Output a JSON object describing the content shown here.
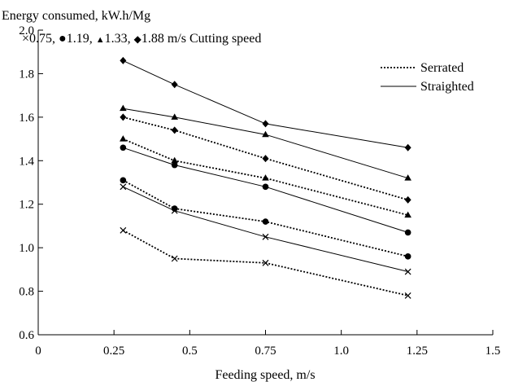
{
  "chart_data": {
    "type": "line",
    "ylabel": "Energy consumed, kW.h/Mg",
    "xlabel": "Feeding speed, m/s",
    "subtitle_parts": [
      "×0.75, ",
      "●",
      "1.19, ",
      "▲",
      "1.33, ",
      "◆",
      "1.88 m/s Cutting speed"
    ],
    "legend": [
      {
        "label": "Serrated",
        "style": "dotted"
      },
      {
        "label": "Straighted",
        "style": "solid"
      }
    ],
    "legend_position": "top-right",
    "xlim": [
      0,
      1.5
    ],
    "ylim": [
      0.6,
      2.0
    ],
    "xticks": [
      0,
      0.25,
      0.5,
      0.75,
      1.0,
      1.25,
      1.5
    ],
    "xtick_labels": [
      "0",
      "0.25",
      "0.5",
      "0.75",
      "1.0",
      "1.25",
      "1.5"
    ],
    "yticks": [
      0.6,
      0.8,
      1.0,
      1.2,
      1.4,
      1.6,
      1.8,
      2.0
    ],
    "ytick_labels": [
      "0.6",
      "0.8",
      "1.0",
      "1.2",
      "1.4",
      "1.6",
      "1.8",
      "2.0"
    ],
    "grid": false,
    "x": [
      0.28,
      0.45,
      0.75,
      1.22
    ],
    "series": [
      {
        "style": "dotted",
        "marker": "x",
        "cutting_speed": 0.75,
        "values": [
          1.08,
          0.95,
          0.93,
          0.78
        ]
      },
      {
        "style": "solid",
        "marker": "x",
        "cutting_speed": 0.75,
        "values": [
          1.28,
          1.17,
          1.05,
          0.89
        ]
      },
      {
        "style": "dotted",
        "marker": "circle",
        "cutting_speed": 1.19,
        "values": [
          1.31,
          1.18,
          1.12,
          0.96
        ]
      },
      {
        "style": "solid",
        "marker": "circle",
        "cutting_speed": 1.19,
        "values": [
          1.46,
          1.38,
          1.28,
          1.07
        ]
      },
      {
        "style": "dotted",
        "marker": "triangle",
        "cutting_speed": 1.33,
        "values": [
          1.5,
          1.4,
          1.32,
          1.15
        ]
      },
      {
        "style": "solid",
        "marker": "triangle",
        "cutting_speed": 1.33,
        "values": [
          1.64,
          1.6,
          1.52,
          1.32
        ]
      },
      {
        "style": "dotted",
        "marker": "diamond",
        "cutting_speed": 1.88,
        "values": [
          1.6,
          1.54,
          1.41,
          1.22
        ]
      },
      {
        "style": "solid",
        "marker": "diamond",
        "cutting_speed": 1.88,
        "values": [
          1.86,
          1.75,
          1.57,
          1.46
        ]
      }
    ]
  }
}
